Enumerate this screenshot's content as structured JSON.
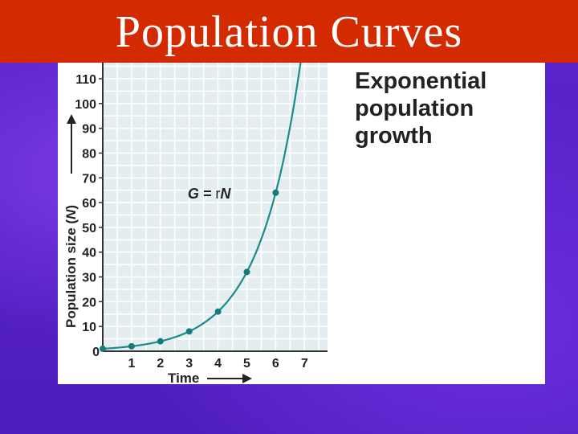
{
  "slide": {
    "title": "Population Curves"
  },
  "figure": {
    "heading_lines": [
      "Exponential",
      "population",
      "growth"
    ]
  },
  "colors": {
    "title_bar": "#d42a00",
    "background": "#5a22c8",
    "plot_background": "#e4eef0",
    "curve": "#1a8a8a",
    "points": "#167a7a"
  },
  "chart_data": {
    "type": "line",
    "title": "Exponential population growth",
    "xlabel": "Time",
    "ylabel": "Population size (N)",
    "ylabel_parts": [
      "Population size (",
      "N",
      ")"
    ],
    "equation_parts": [
      "G = ",
      "r",
      "N"
    ],
    "x_ticks": [
      1,
      2,
      3,
      4,
      5,
      6,
      7
    ],
    "y_ticks": [
      0,
      10,
      20,
      30,
      40,
      50,
      60,
      70,
      80,
      90,
      100,
      110
    ],
    "xlim": [
      0,
      7.8
    ],
    "ylim": [
      0,
      110
    ],
    "grid": true,
    "series": [
      {
        "x": [
          0,
          1,
          2,
          3,
          4,
          5,
          6
        ],
        "y": [
          1,
          2,
          4,
          8,
          16,
          32,
          64
        ],
        "marker": true
      }
    ],
    "curve_x_max": 6.9
  }
}
